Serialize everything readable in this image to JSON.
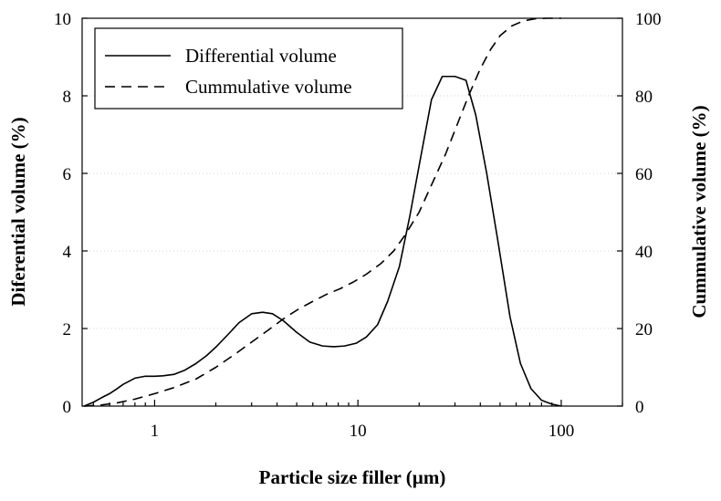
{
  "chart_data": {
    "type": "line",
    "xlabel": "Particle size filler (µm)",
    "ylabel_left": "Diferential volume (%)",
    "ylabel_right": "Cummulative volume (%)",
    "x_scale": "log",
    "xlim": [
      0.44,
      200
    ],
    "ylim_left": [
      0,
      10
    ],
    "ylim_right": [
      0,
      100
    ],
    "x_ticks": [
      1,
      10,
      100
    ],
    "x_tick_labels": [
      "1",
      "10",
      "100"
    ],
    "y_left_ticks": [
      0,
      2,
      4,
      6,
      8,
      10
    ],
    "y_left_tick_labels": [
      "0",
      "2",
      "4",
      "6",
      "8",
      "10"
    ],
    "y_right_ticks": [
      0,
      20,
      40,
      60,
      80,
      100
    ],
    "y_right_tick_labels": [
      "0",
      "20",
      "40",
      "60",
      "80",
      "100"
    ],
    "grid": true,
    "legend_position": "top-left",
    "series": [
      {
        "name": "Differential volume",
        "axis": "left",
        "style": "solid",
        "x": [
          0.45,
          0.5,
          0.55,
          0.6,
          0.65,
          0.7,
          0.8,
          0.9,
          1.0,
          1.1,
          1.25,
          1.4,
          1.6,
          1.8,
          2.0,
          2.3,
          2.6,
          3.0,
          3.4,
          3.8,
          4.3,
          5.0,
          5.8,
          6.7,
          7.6,
          8.6,
          9.8,
          11.0,
          12.5,
          14.0,
          16.0,
          18.0,
          20.0,
          23.0,
          26.0,
          30.0,
          34.0,
          38.0,
          43.0,
          49.0,
          56.0,
          63.0,
          71.0,
          80.0,
          90.0,
          100.0
        ],
        "values": [
          0.0,
          0.1,
          0.22,
          0.32,
          0.44,
          0.56,
          0.72,
          0.77,
          0.77,
          0.78,
          0.82,
          0.92,
          1.1,
          1.3,
          1.52,
          1.85,
          2.15,
          2.38,
          2.42,
          2.38,
          2.2,
          1.9,
          1.65,
          1.55,
          1.53,
          1.55,
          1.62,
          1.78,
          2.1,
          2.7,
          3.6,
          4.9,
          6.2,
          7.9,
          8.5,
          8.5,
          8.4,
          7.5,
          6.0,
          4.2,
          2.3,
          1.1,
          0.45,
          0.15,
          0.05,
          0.0
        ]
      },
      {
        "name": "Cummulative volume",
        "axis": "right",
        "style": "dashed",
        "x": [
          0.45,
          0.55,
          0.65,
          0.8,
          1.0,
          1.25,
          1.6,
          2.0,
          2.5,
          3.0,
          3.6,
          4.3,
          5.1,
          6.0,
          7.0,
          8.2,
          9.5,
          11.0,
          13.0,
          15.0,
          17.0,
          20.0,
          23.0,
          27.0,
          31.0,
          35.0,
          40.0,
          45.0,
          50.0,
          57.0,
          65.0,
          75.0,
          85.0,
          100.0
        ],
        "values": [
          0.0,
          0.3,
          0.8,
          1.8,
          3.2,
          4.8,
          7.0,
          10.0,
          13.5,
          16.5,
          19.5,
          22.5,
          25.0,
          27.0,
          28.8,
          30.3,
          32.0,
          34.0,
          36.8,
          40.0,
          44.0,
          50.0,
          57.0,
          65.0,
          73.0,
          80.0,
          87.0,
          92.0,
          95.5,
          98.0,
          99.3,
          99.9,
          100.0,
          100.0
        ]
      }
    ]
  }
}
